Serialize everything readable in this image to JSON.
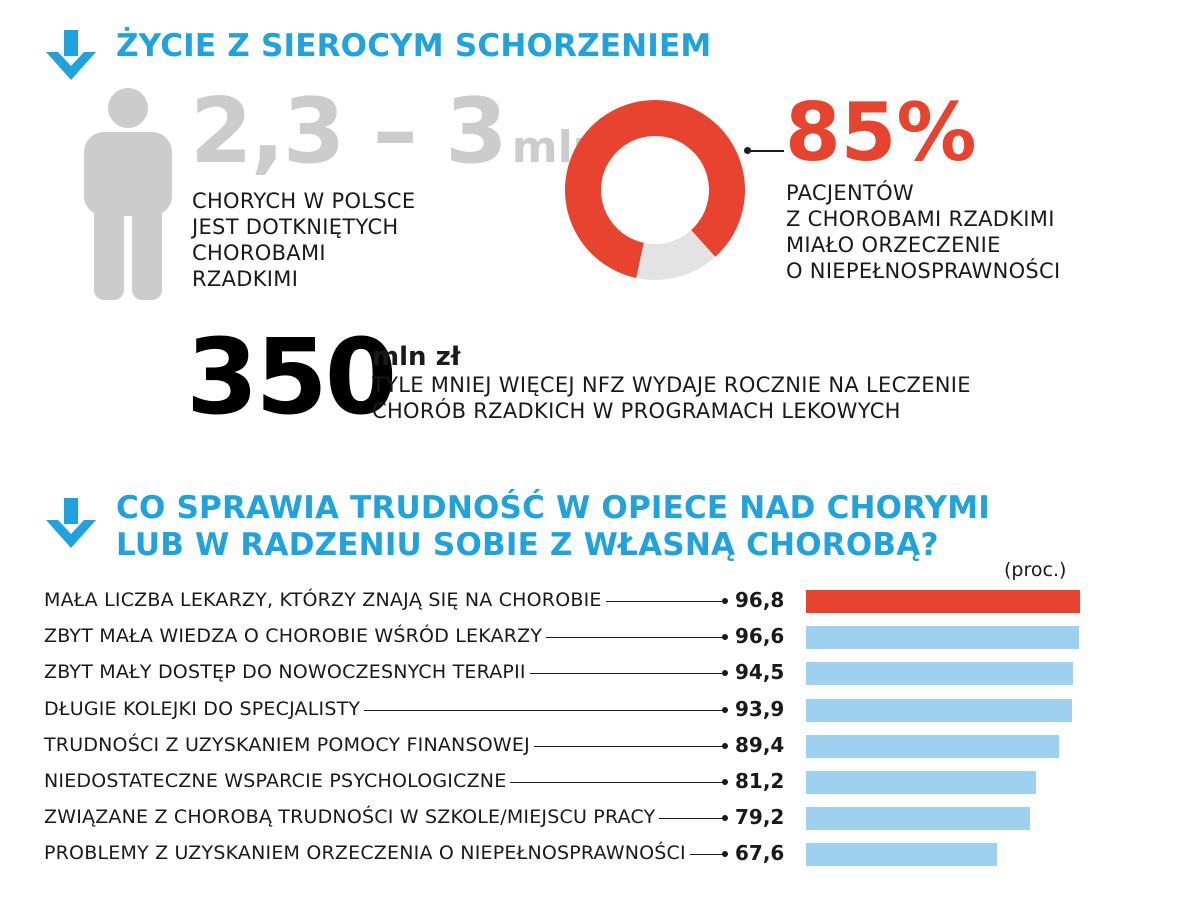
{
  "colors": {
    "accent_blue": "#1fa3df",
    "highlight_red": "#e8432f",
    "bar_blue": "#9dd1ef",
    "muted_gray": "#cccccc",
    "donut_rest": "#e3e3e3"
  },
  "section1": {
    "heading": "ŻYCIE Z SIEROCYM SCHORZENIEM",
    "patients": {
      "number": "2,3 – 3",
      "unit": "mln",
      "caption_lines": [
        "CHORYCH W POLSCE",
        "JEST DOTKNIĘTYCH",
        "CHOROBAMI",
        "RZADKIMI"
      ]
    },
    "disability": {
      "percent_label": "85%",
      "caption_lines": [
        "PACJENTÓW",
        "Z CHOROBAMI RZADKIMI",
        "MIAŁO ORZECZENIE",
        "O NIEPEŁNOSPRAWNOŚCI"
      ]
    },
    "spending": {
      "number": "350",
      "unit": "mln zł",
      "caption_lines": [
        "TYLE MNIEJ WIĘCEJ NFZ WYDAJE ROCZNIE NA LECZENIE",
        "CHORÓB RZADKICH W PROGRAMACH LEKOWYCH"
      ]
    }
  },
  "section2": {
    "heading_lines": [
      "CO SPRAWIA TRUDNOŚĆ W OPIECE NAD CHORYMI",
      "LUB W RADZENIU SOBIE Z WŁASNĄ CHOROBĄ?"
    ],
    "unit_label": "(proc.)"
  },
  "chart_data": [
    {
      "type": "pie",
      "title": "",
      "values": [
        85,
        15
      ],
      "colors": [
        "#e8432f",
        "#e3e3e3"
      ],
      "donut": true
    },
    {
      "type": "bar",
      "orientation": "horizontal",
      "title": "",
      "unit": "(proc.)",
      "xlim": [
        0,
        96.8
      ],
      "categories": [
        "MAŁA LICZBA LEKARZY, KTÓRZY ZNAJĄ SIĘ NA CHOROBIE",
        "ZBYT MAŁA WIEDZA O CHOROBIE WŚRÓD LEKARZY",
        "ZBYT MAŁY DOSTĘP DO NOWOCZESNYCH TERAPII",
        "DŁUGIE KOLEJKI DO SPECJALISTY",
        "TRUDNOŚCI Z UZYSKANIEM POMOCY FINANSOWEJ",
        "NIEDOSTATECZNE WSPARCIE PSYCHOLOGICZNE",
        "ZWIĄZANE Z CHOROBĄ TRUDNOŚCI W SZKOLE/MIEJSCU PRACY",
        "PROBLEMY Z UZYSKANIEM ORZECZENIA O NIEPEŁNOSPRAWNOŚCI"
      ],
      "values": [
        96.8,
        96.6,
        94.5,
        93.9,
        89.4,
        81.2,
        79.2,
        67.6
      ],
      "value_labels": [
        "96,8",
        "96,6",
        "94,5",
        "93,9",
        "89,4",
        "81,2",
        "79,2",
        "67,6"
      ],
      "highlight_index": 0
    }
  ]
}
